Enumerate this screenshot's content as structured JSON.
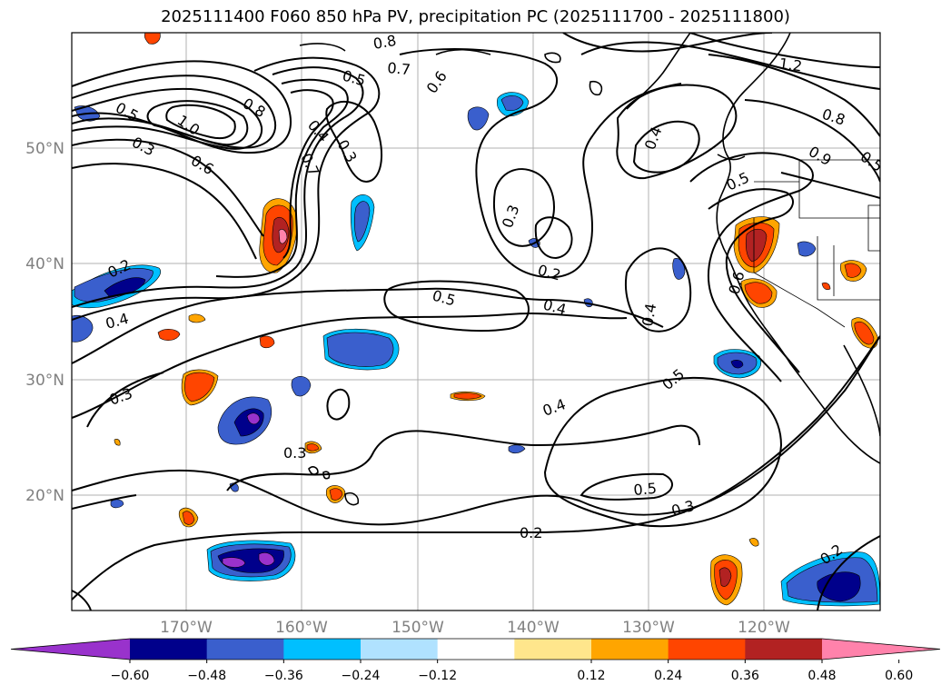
{
  "title": "2025111400 F060 850 hPa PV, precipitation PC (2025111700 - 2025111800)",
  "lat_labels": [
    "50°N",
    "40°N",
    "30°N",
    "20°N"
  ],
  "lon_labels": [
    "170°W",
    "160°W",
    "150°W",
    "140°W",
    "130°W",
    "120°W"
  ],
  "contour_labels": [
    "0.5",
    "1.0",
    "0.3",
    "0.6",
    "0.8",
    "0.4",
    "0.7",
    "0.3",
    "0.5",
    "0.7",
    "0.8",
    "0.6",
    "0.3",
    "0.2",
    "0.5",
    "0.4",
    "0.4",
    "0.6",
    "0.4",
    "0.5",
    "1.2",
    "0.8",
    "0.9",
    "0.5",
    "0.2",
    "0.4",
    "0.3",
    "0.3",
    "0.4",
    "0.5",
    "0.5",
    "0.3",
    "0.2",
    "0.2"
  ],
  "colorbar": {
    "ticks": [
      "−0.60",
      "−0.48",
      "−0.36",
      "−0.24",
      "−0.12",
      "0.12",
      "0.24",
      "0.36",
      "0.48",
      "0.60"
    ],
    "colors": [
      "#9932cc",
      "#00008b",
      "#3a5fcd",
      "#00bfff",
      "#b0e2ff",
      "#ffffff",
      "#ffe68c",
      "#ffa500",
      "#ff4500",
      "#b22222",
      "#ff82ab"
    ]
  }
}
